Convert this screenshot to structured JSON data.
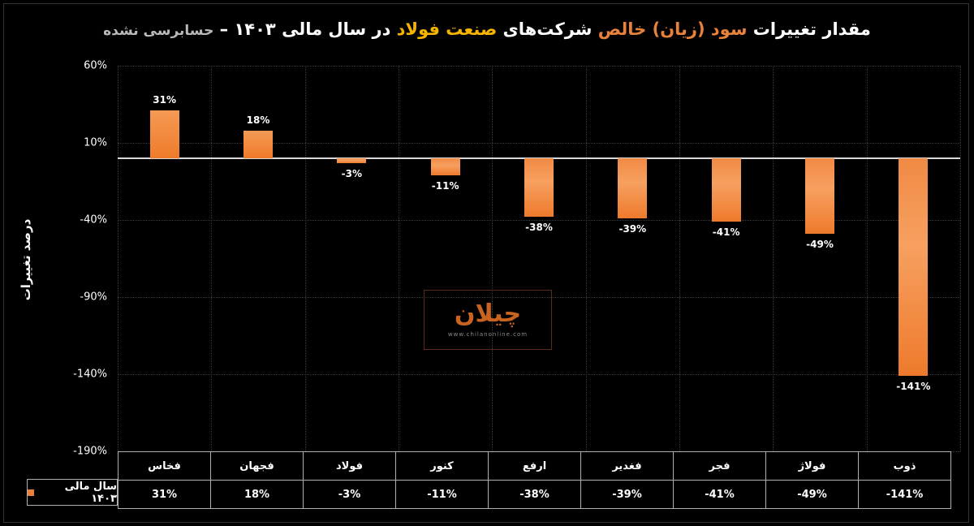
{
  "title": {
    "parts": [
      {
        "text": "مقدار تغییرات ",
        "color": "white"
      },
      {
        "text": "سود (زیان) خالص",
        "color": "orange"
      },
      {
        "text": " شرکت‌های ",
        "color": "white"
      },
      {
        "text": "صنعت فولاد",
        "color": "yellow"
      },
      {
        "text": " در سال مالی ۱۴۰۳ – ",
        "color": "white"
      },
      {
        "text": "حسابرسی نشده",
        "color": "gray"
      }
    ]
  },
  "watermark": {
    "logo": "چیلان",
    "url": "www.chilanonline.com"
  },
  "colors": {
    "bar": "#ef7b2a",
    "title_orange": "#e8813a",
    "title_yellow": "#f7b500",
    "background": "#000000"
  },
  "chart_data": {
    "type": "bar",
    "title": "مقدار تغییرات سود (زیان) خالص شرکت‌های صنعت فولاد در سال مالی ۱۴۰۳ – حسابرسی نشده",
    "xlabel": "",
    "ylabel": "درصد تغییرات",
    "ylim": [
      -190,
      60
    ],
    "yticks": [
      "60%",
      "10%",
      "-40%",
      "-90%",
      "-140%",
      "-190%"
    ],
    "ytick_values": [
      60,
      10,
      -40,
      -90,
      -140,
      -190
    ],
    "grid": true,
    "legend_position": "bottom-left (data table)",
    "categories": [
      "فخاس",
      "فجهان",
      "فولاد",
      "کنور",
      "ارفع",
      "فغدیر",
      "فجر",
      "فولاژ",
      "ذوب"
    ],
    "series": [
      {
        "name": "سال مالی ۱۴۰۳",
        "values": [
          31,
          18,
          -3,
          -11,
          -38,
          -39,
          -41,
          -49,
          -141
        ],
        "labels": [
          "31%",
          "18%",
          "-3%",
          "-11%",
          "-38%",
          "-39%",
          "-41%",
          "-49%",
          "-141%"
        ]
      }
    ]
  },
  "table": {
    "legend_label": "سال مالی ۱۴۰۳"
  }
}
